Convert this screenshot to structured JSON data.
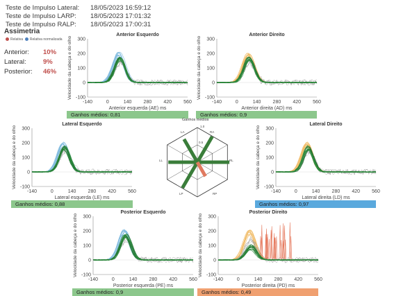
{
  "header": {
    "lines": [
      {
        "label": "Teste de Impulso Lateral:",
        "value": "18/05/2023 16:59:12"
      },
      {
        "label": "Teste de Impulso LARP:",
        "value": "18/05/2023 17:01:32"
      },
      {
        "label": "Teste de Impulso RALP:",
        "value": "18/05/2023 17:00:31"
      }
    ]
  },
  "asymmetry": {
    "title": "Assimetria",
    "legend_relative": "Relativa",
    "legend_normalized": "Relativa normalizada",
    "rows": [
      {
        "label": "Anterior:",
        "value": "10%"
      },
      {
        "label": "Lateral:",
        "value": "9%"
      },
      {
        "label": "Posterior:",
        "value": "46%"
      }
    ]
  },
  "ylabel": "Velocidade da cabeça e do olho",
  "y_ticks": [
    "300",
    "200",
    "100",
    "0",
    "-100"
  ],
  "x_ticks": [
    "-140",
    "0",
    "140",
    "280",
    "420",
    "560"
  ],
  "panels": [
    {
      "title": "Anterior Esquerdo",
      "xlabel": "Anterior esquerda (AE) ms",
      "gain": "Ganhos médios: 0,81",
      "gain_color": "#8cc78c",
      "head_color": "#7ab7dd"
    },
    {
      "title": "Anterior Direito",
      "xlabel": "Anterior direita (AD) ms",
      "gain": "Ganhos médios: 0,9",
      "gain_color": "#8cc78c",
      "head_color": "#f0b860"
    },
    {
      "title": "Lateral Esquerdo",
      "xlabel": "Lateral esquerda (LE) ms",
      "gain": "Ganhos médios: 0,88",
      "gain_color": "#8cc78c",
      "head_color": "#7ab7dd"
    },
    {
      "title": "Lateral Direito",
      "xlabel": "Lateral direita (LD) ms",
      "gain": "Ganhos médios: 0,97",
      "gain_color": "#5aa9dd",
      "head_color": "#f0b860"
    },
    {
      "title": "Posterior Esquerdo",
      "xlabel": "Posterior esquerda (PE) ms",
      "gain": "Ganhos médios: 0,9",
      "gain_color": "#8cc78c",
      "head_color": "#7ab7dd"
    },
    {
      "title": "Posterior Direito",
      "xlabel": "Posterior direita (PD) ms",
      "gain": "Ganhos médios: 0,49",
      "gain_color": "#f0a070",
      "head_color": "#f0b860"
    }
  ],
  "hexagon": {
    "title": "Ganhos médios",
    "labels": {
      "la": "LA",
      "lp": "LP",
      "ll": "LL",
      "ra": "RA",
      "rp": "RP",
      "rl": "RL",
      "top": "1.0",
      "mid": "0.5"
    }
  },
  "colors": {
    "eye": "#2e8b3e",
    "eye_dark": "#1f6f2c",
    "saccade": "#e06040",
    "grey": "#9a9a9a"
  }
}
